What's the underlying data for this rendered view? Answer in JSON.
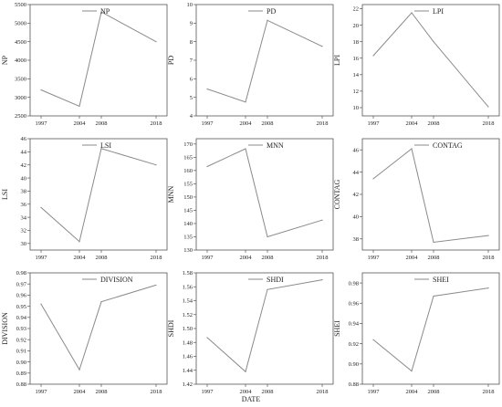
{
  "xlabel": "DATE",
  "chart_data": [
    {
      "type": "line",
      "ylabel": "NP",
      "legend": "NP",
      "x": [
        1997,
        2004,
        2008,
        2018
      ],
      "values": [
        3200,
        2760,
        5300,
        4500
      ],
      "ylim": [
        2500,
        5500
      ],
      "yticks": [
        2500,
        3000,
        3500,
        4000,
        4500,
        5000,
        5500
      ],
      "dp": 0
    },
    {
      "type": "line",
      "ylabel": "PD",
      "legend": "PD",
      "x": [
        1997,
        2004,
        2008,
        2018
      ],
      "values": [
        5.45,
        4.75,
        9.15,
        7.75
      ],
      "ylim": [
        4,
        10
      ],
      "yticks": [
        4,
        5,
        6,
        7,
        8,
        9,
        10
      ],
      "dp": 0
    },
    {
      "type": "line",
      "ylabel": "LPI",
      "legend": "LPI",
      "x": [
        1997,
        2004,
        2008,
        2018
      ],
      "values": [
        16.3,
        21.5,
        18.0,
        10.1
      ],
      "ylim": [
        9,
        22.5
      ],
      "yticks": [
        10,
        12,
        14,
        16,
        18,
        20,
        22
      ],
      "dp": 0
    },
    {
      "type": "line",
      "ylabel": "LSI",
      "legend": "LSI",
      "x": [
        1997,
        2004,
        2008,
        2018
      ],
      "values": [
        35.5,
        30.3,
        44.5,
        42.0
      ],
      "ylim": [
        29,
        46
      ],
      "yticks": [
        30,
        32,
        34,
        36,
        38,
        40,
        42,
        44,
        46
      ],
      "dp": 0
    },
    {
      "type": "line",
      "ylabel": "MNN",
      "legend": "MNN",
      "x": [
        1997,
        2004,
        2008,
        2018
      ],
      "values": [
        161.5,
        168.2,
        135.0,
        141.3
      ],
      "ylim": [
        130,
        172
      ],
      "yticks": [
        130,
        135,
        140,
        145,
        150,
        155,
        160,
        165,
        170
      ],
      "dp": 0
    },
    {
      "type": "line",
      "ylabel": "CONTAG",
      "legend": "CONTAG",
      "x": [
        1997,
        2004,
        2008,
        2018
      ],
      "values": [
        43.4,
        46.1,
        37.7,
        38.3
      ],
      "ylim": [
        37,
        47
      ],
      "yticks": [
        38,
        40,
        42,
        44,
        46
      ],
      "dp": 0
    },
    {
      "type": "line",
      "ylabel": "DIVISION",
      "legend": "DIVISION",
      "x": [
        1997,
        2004,
        2008,
        2018
      ],
      "values": [
        0.952,
        0.893,
        0.954,
        0.969
      ],
      "ylim": [
        0.88,
        0.98
      ],
      "yticks": [
        0.88,
        0.89,
        0.9,
        0.91,
        0.92,
        0.93,
        0.94,
        0.95,
        0.96,
        0.97,
        0.98
      ],
      "dp": 2
    },
    {
      "type": "line",
      "ylabel": "SHDI",
      "legend": "SHDI",
      "x": [
        1997,
        2004,
        2008,
        2018
      ],
      "values": [
        1.487,
        1.438,
        1.556,
        1.57
      ],
      "ylim": [
        1.42,
        1.58
      ],
      "yticks": [
        1.42,
        1.44,
        1.46,
        1.48,
        1.5,
        1.52,
        1.54,
        1.56,
        1.58
      ],
      "dp": 2
    },
    {
      "type": "line",
      "ylabel": "SHEI",
      "legend": "SHEI",
      "x": [
        1997,
        2004,
        2008,
        2018
      ],
      "values": [
        0.924,
        0.893,
        0.967,
        0.975
      ],
      "ylim": [
        0.88,
        0.99
      ],
      "yticks": [
        0.88,
        0.9,
        0.92,
        0.94,
        0.96,
        0.98
      ],
      "dp": 2
    }
  ]
}
